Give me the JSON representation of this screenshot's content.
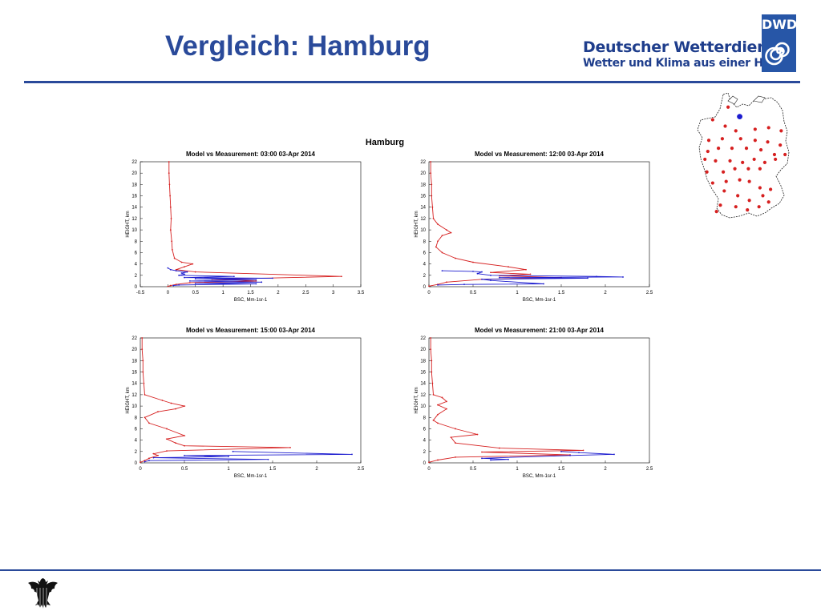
{
  "slide": {
    "title": "Vergleich: Hamburg",
    "brand_name": "Deutscher Wetterdienst",
    "brand_tagline": "Wetter und Klima aus einer Hand",
    "logo_text": "DWD",
    "figure_title": "Hamburg"
  },
  "colors": {
    "brand": "#2a4a9a",
    "model": "#d62020",
    "measurement": "#1c1ccf"
  },
  "map": {
    "highlight_station": "Hamburg",
    "stations_lonlat": [
      [
        10.0,
        53.6
      ],
      [
        8.8,
        54.2
      ],
      [
        7.2,
        53.4
      ],
      [
        8.5,
        53.0
      ],
      [
        9.6,
        52.7
      ],
      [
        11.6,
        52.8
      ],
      [
        13.0,
        52.9
      ],
      [
        14.3,
        52.7
      ],
      [
        6.8,
        52.1
      ],
      [
        8.2,
        52.2
      ],
      [
        10.1,
        52.2
      ],
      [
        11.6,
        52.1
      ],
      [
        12.9,
        52.0
      ],
      [
        14.2,
        51.8
      ],
      [
        6.7,
        51.4
      ],
      [
        7.8,
        51.6
      ],
      [
        9.2,
        51.6
      ],
      [
        10.7,
        51.6
      ],
      [
        12.2,
        51.5
      ],
      [
        13.6,
        51.2
      ],
      [
        14.7,
        51.2
      ],
      [
        6.4,
        50.9
      ],
      [
        7.5,
        50.8
      ],
      [
        9.0,
        50.8
      ],
      [
        10.3,
        50.7
      ],
      [
        11.5,
        50.9
      ],
      [
        12.6,
        50.7
      ],
      [
        13.7,
        50.9
      ],
      [
        6.6,
        50.1
      ],
      [
        8.3,
        50.1
      ],
      [
        9.5,
        50.3
      ],
      [
        10.9,
        50.3
      ],
      [
        12.1,
        50.3
      ],
      [
        7.2,
        49.4
      ],
      [
        8.6,
        49.5
      ],
      [
        10.0,
        49.6
      ],
      [
        11.0,
        49.5
      ],
      [
        12.1,
        49.1
      ],
      [
        13.2,
        49.0
      ],
      [
        8.4,
        48.9
      ],
      [
        9.8,
        48.6
      ],
      [
        11.0,
        48.3
      ],
      [
        12.4,
        48.6
      ],
      [
        8.0,
        48.0
      ],
      [
        9.6,
        47.9
      ],
      [
        10.8,
        47.7
      ],
      [
        12.0,
        47.9
      ],
      [
        13.0,
        48.2
      ],
      [
        7.6,
        47.6
      ]
    ]
  },
  "chart_data": [
    {
      "type": "line",
      "title": "Model vs Measurement: 03:00 03-Apr 2014",
      "xlabel": "BSC, Mm-1sr-1",
      "ylabel": "HEIGHT, km",
      "xlim": [
        -0.5,
        3.5
      ],
      "xticks": [
        "-0.5",
        "0",
        "0.5",
        "1",
        "1.5",
        "2",
        "2.5",
        "3",
        "3.5"
      ],
      "ylim": [
        0,
        22
      ],
      "yticks": [
        "0",
        "2",
        "4",
        "6",
        "8",
        "10",
        "12",
        "14",
        "16",
        "18",
        "20",
        "22"
      ],
      "series": [
        {
          "role": "model",
          "points": [
            [
              0.02,
              22
            ],
            [
              0.02,
              20
            ],
            [
              0.03,
              18
            ],
            [
              0.04,
              16
            ],
            [
              0.05,
              14
            ],
            [
              0.06,
              12
            ],
            [
              0.05,
              10
            ],
            [
              0.07,
              8
            ],
            [
              0.08,
              6.5
            ],
            [
              0.12,
              5
            ],
            [
              0.25,
              4.3
            ],
            [
              0.45,
              4
            ],
            [
              0.3,
              3.5
            ],
            [
              0.15,
              3
            ],
            [
              0.5,
              2.6
            ],
            [
              3.15,
              1.8
            ],
            [
              0.8,
              1.3
            ],
            [
              1.6,
              1.0
            ],
            [
              0.4,
              0.7
            ],
            [
              0.15,
              0.4
            ],
            [
              0.05,
              0.2
            ],
            [
              0.0,
              0.05
            ]
          ]
        },
        {
          "role": "measurement",
          "points": [
            [
              0,
              3.3
            ],
            [
              0.05,
              3.0
            ],
            [
              0.15,
              2.8
            ],
            [
              0.35,
              2.6
            ],
            [
              0.25,
              2.4
            ],
            [
              0.3,
              2.2
            ],
            [
              0.2,
              2.0
            ],
            [
              1.2,
              1.8
            ],
            [
              0.3,
              1.6
            ],
            [
              1.9,
              1.5
            ],
            [
              0.5,
              1.4
            ],
            [
              1.6,
              1.2
            ],
            [
              0.4,
              1.0
            ],
            [
              1.7,
              0.8
            ],
            [
              0.5,
              0.6
            ],
            [
              1.6,
              0.5
            ],
            [
              0.2,
              0.3
            ],
            [
              0.1,
              0.2
            ]
          ]
        }
      ]
    },
    {
      "type": "line",
      "title": "Model vs Measurement: 12:00 03-Apr 2014",
      "xlabel": "BSC, Mm-1sr-1",
      "ylabel": "HEIGHT, km",
      "xlim": [
        0,
        2.5
      ],
      "xticks": [
        "0",
        "0.5",
        "1",
        "1.5",
        "2",
        "2.5"
      ],
      "ylim": [
        0,
        22
      ],
      "yticks": [
        "0",
        "2",
        "4",
        "6",
        "8",
        "10",
        "12",
        "14",
        "16",
        "18",
        "20",
        "22"
      ],
      "series": [
        {
          "role": "model",
          "points": [
            [
              0.02,
              22
            ],
            [
              0.02,
              20
            ],
            [
              0.03,
              18
            ],
            [
              0.03,
              16
            ],
            [
              0.04,
              14
            ],
            [
              0.05,
              12
            ],
            [
              0.1,
              11
            ],
            [
              0.2,
              10
            ],
            [
              0.25,
              9.5
            ],
            [
              0.15,
              9
            ],
            [
              0.1,
              8
            ],
            [
              0.08,
              7
            ],
            [
              0.15,
              6
            ],
            [
              0.3,
              5
            ],
            [
              0.5,
              4.3
            ],
            [
              0.9,
              3.5
            ],
            [
              1.1,
              3
            ],
            [
              0.7,
              2.5
            ],
            [
              1.15,
              2.2
            ],
            [
              0.8,
              1.9
            ],
            [
              1.5,
              1.6
            ],
            [
              0.6,
              1.3
            ],
            [
              0.2,
              0.8
            ],
            [
              0.1,
              0.4
            ],
            [
              0.0,
              0.1
            ]
          ]
        },
        {
          "role": "measurement",
          "points": [
            [
              0.15,
              2.8
            ],
            [
              0.5,
              2.7
            ],
            [
              0.6,
              2.6
            ],
            [
              0.55,
              2.3
            ],
            [
              0.7,
              2.0
            ],
            [
              1.9,
              1.8
            ],
            [
              2.2,
              1.7
            ],
            [
              0.8,
              1.6
            ],
            [
              1.8,
              1.5
            ],
            [
              0.6,
              1.3
            ],
            [
              0.7,
              1.1
            ],
            [
              1.3,
              0.5
            ],
            [
              0.4,
              0.4
            ],
            [
              0.1,
              0.3
            ]
          ]
        }
      ]
    },
    {
      "type": "line",
      "title": "Model vs Measurement: 15:00 03-Apr 2014",
      "xlabel": "BSC, Mm-1sr-1",
      "ylabel": "HEIGHT, km",
      "xlim": [
        0,
        2.5
      ],
      "xticks": [
        "0",
        "0.5",
        "1",
        "1.5",
        "2",
        "2.5"
      ],
      "ylim": [
        0,
        22
      ],
      "yticks": [
        "0",
        "2",
        "4",
        "6",
        "8",
        "10",
        "12",
        "14",
        "16",
        "18",
        "20",
        "22"
      ],
      "series": [
        {
          "role": "model",
          "points": [
            [
              0.02,
              22
            ],
            [
              0.02,
              20
            ],
            [
              0.03,
              18
            ],
            [
              0.03,
              16
            ],
            [
              0.04,
              14
            ],
            [
              0.05,
              12
            ],
            [
              0.25,
              11
            ],
            [
              0.35,
              10.5
            ],
            [
              0.5,
              10
            ],
            [
              0.4,
              9.5
            ],
            [
              0.2,
              9
            ],
            [
              0.05,
              8
            ],
            [
              0.1,
              7
            ],
            [
              0.3,
              6
            ],
            [
              0.5,
              4.8
            ],
            [
              0.3,
              4.2
            ],
            [
              0.4,
              3.5
            ],
            [
              0.5,
              3
            ],
            [
              1.7,
              2.7
            ],
            [
              0.3,
              2.1
            ],
            [
              0.15,
              1.6
            ],
            [
              0.2,
              1.3
            ],
            [
              0.1,
              0.8
            ],
            [
              0.05,
              0.4
            ],
            [
              0.0,
              0.1
            ]
          ]
        },
        {
          "role": "measurement",
          "points": [
            [
              1.05,
              2.0
            ],
            [
              2.4,
              1.5
            ],
            [
              0.5,
              1.3
            ],
            [
              1.0,
              1.1
            ],
            [
              0.15,
              0.9
            ],
            [
              1.45,
              0.6
            ],
            [
              0.1,
              0.4
            ],
            [
              0.05,
              0.2
            ]
          ]
        }
      ]
    },
    {
      "type": "line",
      "title": "Model vs Measurement: 21:00 03-Apr 2014",
      "xlabel": "BSC, Mm-1sr-1",
      "ylabel": "HEIGHT, km",
      "xlim": [
        0,
        2.5
      ],
      "xticks": [
        "0",
        "0.5",
        "1",
        "1.5",
        "2",
        "2.5"
      ],
      "ylim": [
        0,
        22
      ],
      "yticks": [
        "0",
        "2",
        "4",
        "6",
        "8",
        "10",
        "12",
        "14",
        "16",
        "18",
        "20",
        "22"
      ],
      "series": [
        {
          "role": "model",
          "points": [
            [
              0.02,
              22
            ],
            [
              0.02,
              20
            ],
            [
              0.03,
              18
            ],
            [
              0.03,
              16
            ],
            [
              0.04,
              14
            ],
            [
              0.05,
              12
            ],
            [
              0.15,
              11.5
            ],
            [
              0.2,
              10.8
            ],
            [
              0.1,
              10.2
            ],
            [
              0.2,
              9.5
            ],
            [
              0.1,
              8.5
            ],
            [
              0.05,
              7.5
            ],
            [
              0.1,
              7
            ],
            [
              0.3,
              6
            ],
            [
              0.55,
              5
            ],
            [
              0.25,
              4.5
            ],
            [
              0.3,
              3.5
            ],
            [
              0.8,
              2.6
            ],
            [
              1.75,
              2.2
            ],
            [
              0.6,
              1.9
            ],
            [
              1.6,
              1.4
            ],
            [
              0.3,
              1.0
            ],
            [
              0.1,
              0.5
            ],
            [
              0.0,
              0.1
            ]
          ]
        },
        {
          "role": "measurement",
          "points": [
            [
              1.5,
              2.0
            ],
            [
              1.7,
              1.8
            ],
            [
              2.1,
              1.5
            ],
            [
              1.6,
              1.3
            ],
            [
              0.6,
              0.8
            ],
            [
              0.9,
              0.6
            ],
            [
              0.7,
              0.5
            ]
          ]
        }
      ]
    }
  ]
}
